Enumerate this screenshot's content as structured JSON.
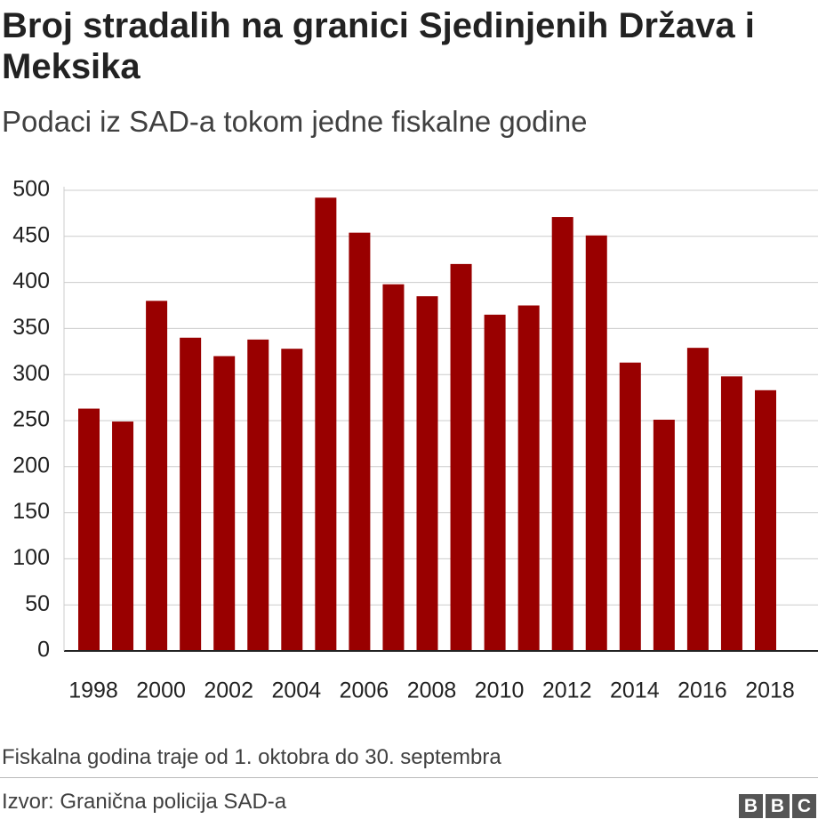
{
  "chart_data": {
    "type": "bar",
    "title": "Broj stradalih na granici Sjedinjenih Država i Meksika",
    "subtitle": "Podaci iz SAD-a tokom jedne fiskalne godine",
    "categories": [
      "1998",
      null,
      "2000",
      null,
      "2002",
      null,
      "2004",
      null,
      "2006",
      null,
      "2008",
      null,
      "2010",
      null,
      "2012",
      null,
      "2014",
      null,
      "2016",
      null,
      "2018"
    ],
    "values": [
      263,
      249,
      380,
      340,
      320,
      338,
      328,
      492,
      454,
      398,
      385,
      420,
      365,
      375,
      471,
      451,
      313,
      251,
      329,
      298,
      283
    ],
    "color": "#990000",
    "ylim": [
      0,
      500
    ],
    "yticks": [
      0,
      50,
      100,
      150,
      200,
      250,
      300,
      350,
      400,
      450,
      500
    ],
    "grid": true,
    "note": "Fiskalna godina traje od 1. oktobra do 30. septembra",
    "source": "Izvor: Granična policija SAD-a"
  }
}
